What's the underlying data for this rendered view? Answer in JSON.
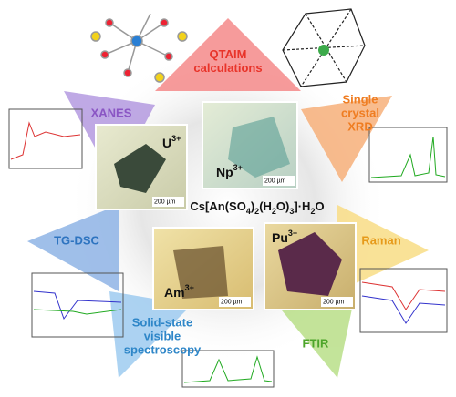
{
  "methods": [
    {
      "lines": [
        "QTAIM",
        "calculations"
      ]
    },
    {
      "lines": [
        "Single",
        "crystal",
        "XRD"
      ]
    },
    {
      "lines": [
        "Raman"
      ]
    },
    {
      "lines": [
        "FTIR"
      ]
    },
    {
      "lines": [
        "Solid-state",
        "visible",
        "spectroscopy"
      ]
    },
    {
      "lines": [
        "TG-DSC"
      ]
    },
    {
      "lines": [
        "XANES"
      ]
    }
  ],
  "formula": [
    "Cs[An(SO",
    "4",
    ")",
    "2",
    "(H",
    "2",
    "O)",
    "3",
    "]·H",
    "2",
    "O"
  ],
  "crystals": [
    {
      "ion": "U",
      "charge": "3+",
      "scale": "200 µm"
    },
    {
      "ion": "Np",
      "charge": "3+",
      "scale": "200 µm"
    },
    {
      "ion": "Am",
      "charge": "3+",
      "scale": "200 µm"
    },
    {
      "ion": "Pu",
      "charge": "3+",
      "scale": "200 µm"
    }
  ]
}
